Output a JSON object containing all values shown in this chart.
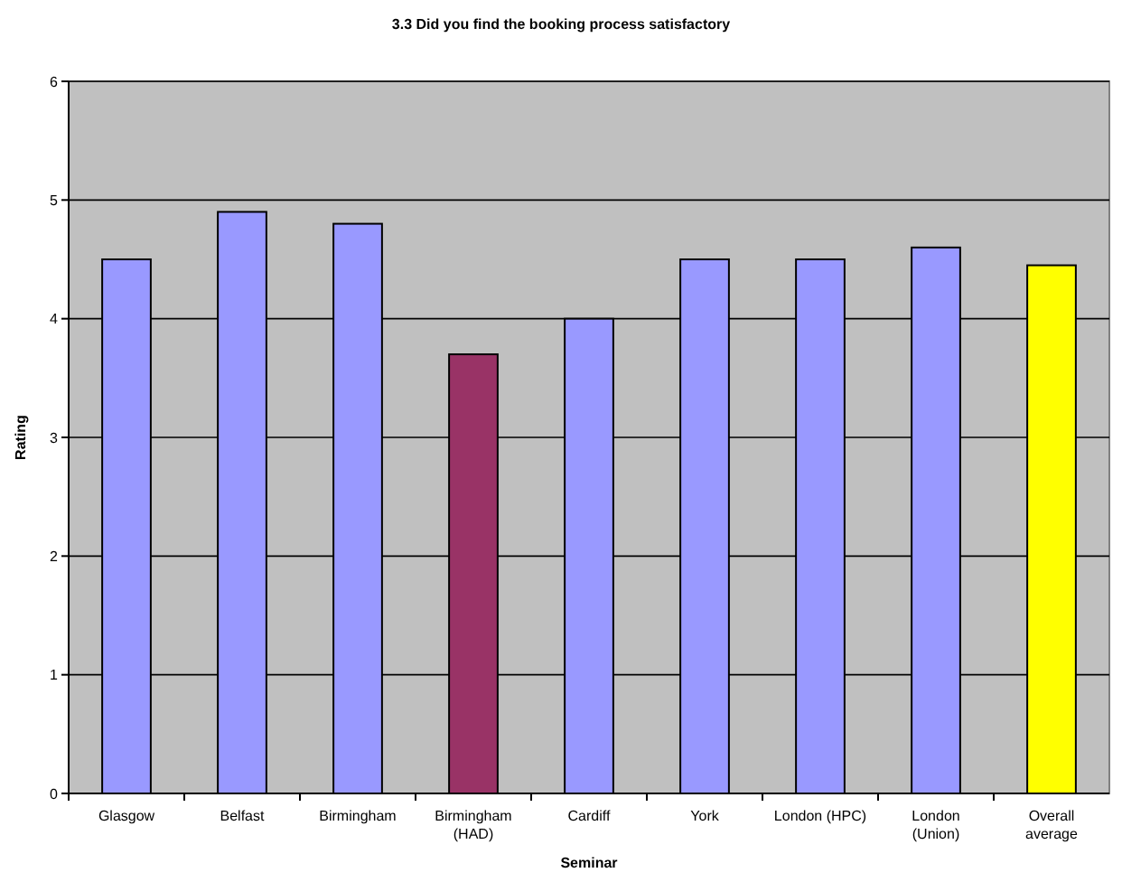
{
  "chart_data": {
    "type": "bar",
    "title": "3.3 Did you find the booking process satisfactory",
    "xlabel": "Seminar",
    "ylabel": "Rating",
    "categories": [
      "Glasgow",
      "Belfast",
      "Birmingham",
      "Birmingham (HAD)",
      "Cardiff",
      "York",
      "London (HPC)",
      "London (Union)",
      "Overall average"
    ],
    "values": [
      4.5,
      4.9,
      4.8,
      3.7,
      4.0,
      4.5,
      4.5,
      4.6,
      4.45
    ],
    "colors": [
      "#9999ff",
      "#9999ff",
      "#9999ff",
      "#993366",
      "#9999ff",
      "#9999ff",
      "#9999ff",
      "#9999ff",
      "#ffff00"
    ],
    "ylim": [
      0,
      6
    ],
    "yticks": [
      0,
      1,
      2,
      3,
      4,
      5,
      6
    ],
    "grid": "y"
  }
}
